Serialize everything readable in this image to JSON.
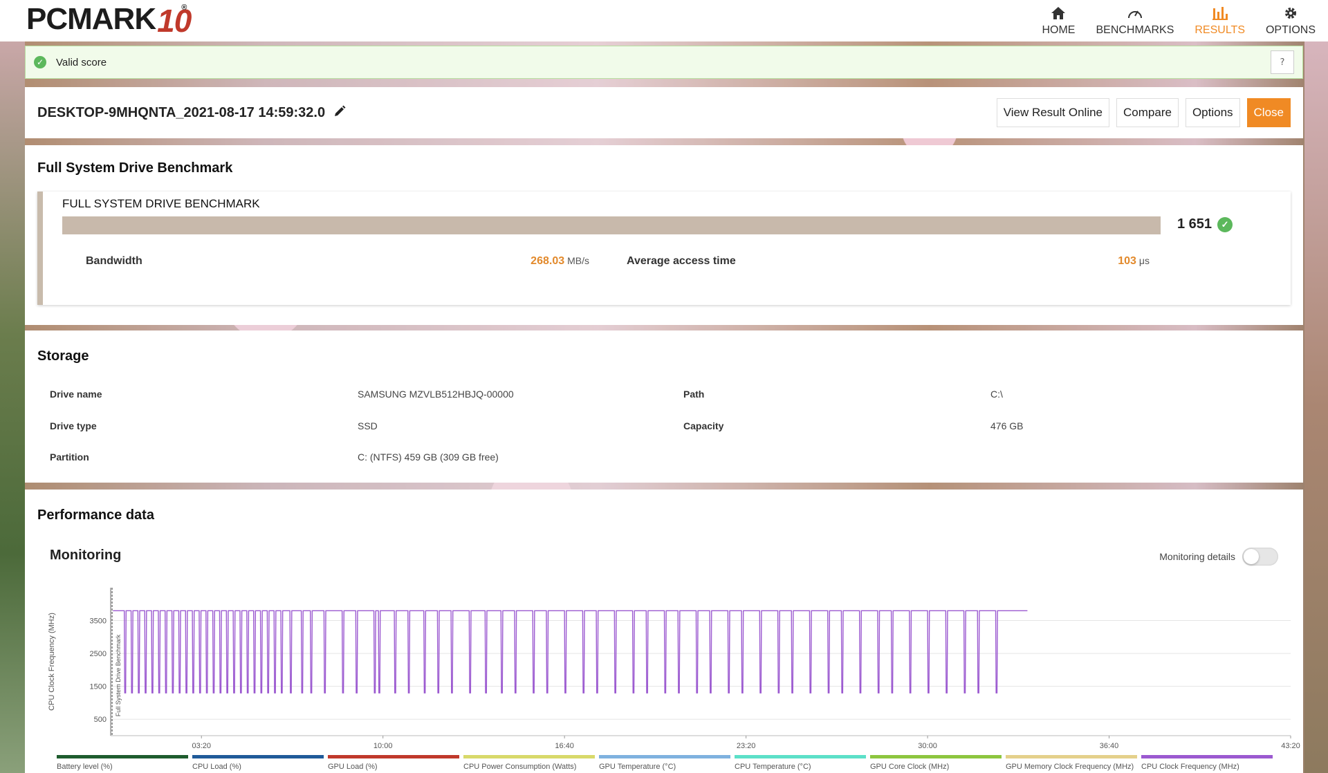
{
  "header": {
    "logo_main": "PCMARK",
    "logo_ten": "10",
    "logo_reg": "®",
    "nav": [
      {
        "label": "HOME",
        "icon": "home-icon",
        "active": false
      },
      {
        "label": "BENCHMARKS",
        "icon": "gauge-icon",
        "active": false
      },
      {
        "label": "RESULTS",
        "icon": "bar-chart-icon",
        "active": true
      },
      {
        "label": "OPTIONS",
        "icon": "gear-icon",
        "active": false
      }
    ],
    "accent": "#f08a24"
  },
  "banner": {
    "text": "Valid score",
    "help": "?"
  },
  "result": {
    "title": "DESKTOP-9MHQNTA_2021-08-17 14:59:32.0",
    "buttons": {
      "view_online": "View Result Online",
      "compare": "Compare",
      "options": "Options",
      "close": "Close"
    }
  },
  "benchmark": {
    "section_title": "Full System Drive Benchmark",
    "panel_title": "FULL SYSTEM DRIVE BENCHMARK",
    "score": "1 651",
    "bar_fill_fraction": 1.0,
    "bandwidth_label": "Bandwidth",
    "bandwidth_value": "268.03",
    "bandwidth_unit": "MB/s",
    "access_label": "Average access time",
    "access_value": "103",
    "access_unit": "μs"
  },
  "storage": {
    "section_title": "Storage",
    "rows": [
      {
        "k1": "Drive name",
        "v1": "SAMSUNG MZVLB512HBJQ-00000",
        "k2": "Path",
        "v2": "C:\\"
      },
      {
        "k1": "Drive type",
        "v1": "SSD",
        "k2": "Capacity",
        "v2": "476 GB"
      },
      {
        "k1": "Partition",
        "v1": "C: (NTFS) 459 GB (309 GB free)",
        "k2": "",
        "v2": ""
      }
    ]
  },
  "performance": {
    "section_title": "Performance data",
    "monitoring_title": "Monitoring",
    "monitoring_details_label": "Monitoring details",
    "monitoring_details_on": false
  },
  "chart_data": {
    "type": "line",
    "ylabel": "CPU Clock Frequency (MHz)",
    "marker_label": "Full System Drive Benchmark",
    "yticks": [
      500,
      1500,
      2500,
      3500
    ],
    "ylim": [
      0,
      4500
    ],
    "xticks": [
      "03:20",
      "10:00",
      "16:40",
      "23:20",
      "30:00",
      "36:40",
      "43:20"
    ],
    "xlim_seconds": [
      0,
      2600
    ],
    "grid": true,
    "series_color": "#9b59d0",
    "base_level_mhz": 3800,
    "low_level_mhz": 1300,
    "end_seconds": 2020,
    "dip_times_seconds": [
      30,
      45,
      60,
      75,
      90,
      105,
      120,
      135,
      150,
      165,
      180,
      195,
      210,
      225,
      240,
      255,
      270,
      285,
      300,
      315,
      330,
      345,
      360,
      375,
      395,
      420,
      440,
      470,
      510,
      540,
      580,
      590,
      625,
      655,
      690,
      720,
      750,
      790,
      825,
      860,
      890,
      930,
      960,
      1000,
      1040,
      1070,
      1110,
      1150,
      1180,
      1220,
      1250,
      1290,
      1320,
      1360,
      1390,
      1430,
      1470,
      1500,
      1540,
      1580,
      1610,
      1650,
      1690,
      1720,
      1760,
      1800,
      1840,
      1880,
      1910,
      1950
    ],
    "legend": [
      {
        "name": "Battery level (%)",
        "color": "#1e5c2e"
      },
      {
        "name": "CPU Load (%)",
        "color": "#1f5a99"
      },
      {
        "name": "GPU Load (%)",
        "color": "#c0392b"
      },
      {
        "name": "CPU Power Consumption (Watts)",
        "color": "#d8d96a"
      },
      {
        "name": "GPU Temperature (°C)",
        "color": "#7fb2df"
      },
      {
        "name": "CPU Temperature (°C)",
        "color": "#5ce0c8"
      },
      {
        "name": "GPU Core Clock (MHz)",
        "color": "#8dc63f"
      },
      {
        "name": "GPU Memory Clock Frequency (MHz)",
        "color": "#e4d08b"
      },
      {
        "name": "CPU Clock Frequency (MHz)",
        "color": "#9b59d0"
      }
    ]
  }
}
